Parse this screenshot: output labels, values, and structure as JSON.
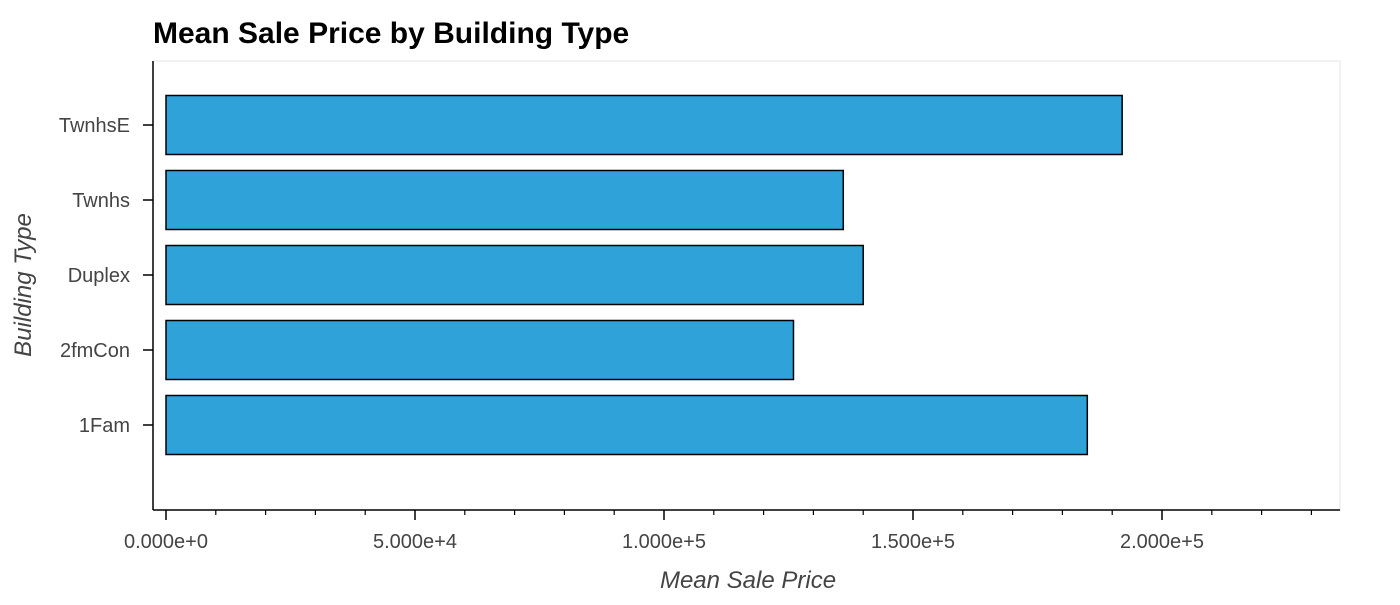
{
  "chart_data": {
    "type": "bar",
    "orientation": "horizontal",
    "title": "Mean Sale Price by Building Type",
    "xlabel": "Mean Sale Price",
    "ylabel": "Building Type",
    "categories": [
      "1Fam",
      "2fmCon",
      "Duplex",
      "Twnhs",
      "TwnhsE"
    ],
    "values": [
      185000,
      126000,
      140000,
      136000,
      192000
    ],
    "xlim": [
      0,
      236000
    ],
    "xticks": [
      0,
      50000,
      100000,
      150000,
      200000
    ],
    "xtick_labels": [
      "0.000e+0",
      "5.000e+4",
      "1.000e+5",
      "1.500e+5",
      "2.000e+5"
    ],
    "grid": false,
    "colors": {
      "bar_fill": "#30a2da",
      "bar_stroke": "#000000",
      "axis": "#000000",
      "tick_text": "#444444",
      "label_text": "#444444",
      "title_text": "#000000",
      "frame": "#e5e5e5"
    }
  }
}
